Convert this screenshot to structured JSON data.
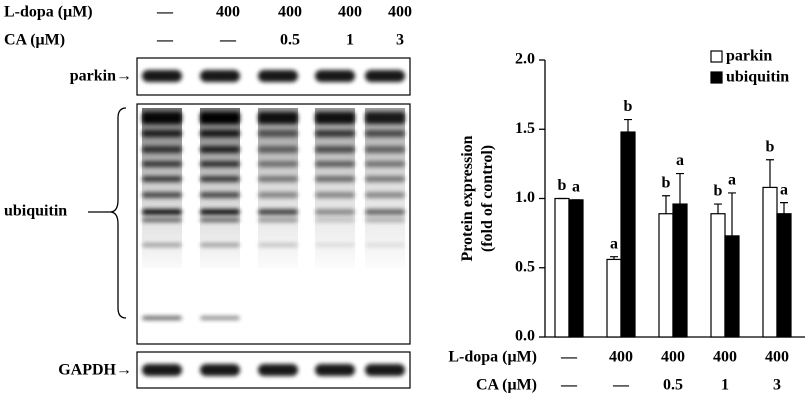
{
  "blot": {
    "header_rows": [
      {
        "label": "L-dopa (μM)",
        "values": [
          "—",
          "400",
          "400",
          "400",
          "400"
        ]
      },
      {
        "label": "CA (μM)",
        "values": [
          "—",
          "—",
          "0.5",
          "1",
          "3"
        ]
      }
    ],
    "panels": [
      {
        "label": "parkin→"
      },
      {
        "label": "ubiquitin"
      },
      {
        "label": "GAPDH→"
      }
    ]
  },
  "chart_data": {
    "type": "bar",
    "ylabel": [
      "Protein expression",
      "(fold of control)"
    ],
    "category_rows": [
      {
        "label": "L-dopa (μM)",
        "values": [
          "—",
          "400",
          "400",
          "400",
          "400"
        ]
      },
      {
        "label": "CA (μM)",
        "values": [
          "—",
          "—",
          "0.5",
          "1",
          "3"
        ]
      }
    ],
    "series": [
      {
        "name": "parkin",
        "color": "#ffffff",
        "values": [
          1.0,
          0.56,
          0.89,
          0.89,
          1.08
        ],
        "errors": [
          0.0,
          0.02,
          0.13,
          0.07,
          0.2
        ],
        "letters": [
          "b",
          "a",
          "b",
          "b",
          "b"
        ]
      },
      {
        "name": "ubiquitin",
        "color": "#000000",
        "values": [
          0.99,
          1.48,
          0.96,
          0.73,
          0.89
        ],
        "errors": [
          0.0,
          0.09,
          0.22,
          0.31,
          0.08
        ],
        "letters": [
          "a",
          "b",
          "a",
          "a",
          "a"
        ]
      }
    ],
    "ylim": [
      0,
      2
    ],
    "yticks": [
      {
        "value": 0,
        "label": "0.0"
      },
      {
        "value": 0.5,
        "label": "0.5"
      },
      {
        "value": 1,
        "label": "1.0"
      },
      {
        "value": 1.5,
        "label": "1.5"
      },
      {
        "value": 2,
        "label": "2.0"
      }
    ],
    "legend": "upper right"
  }
}
